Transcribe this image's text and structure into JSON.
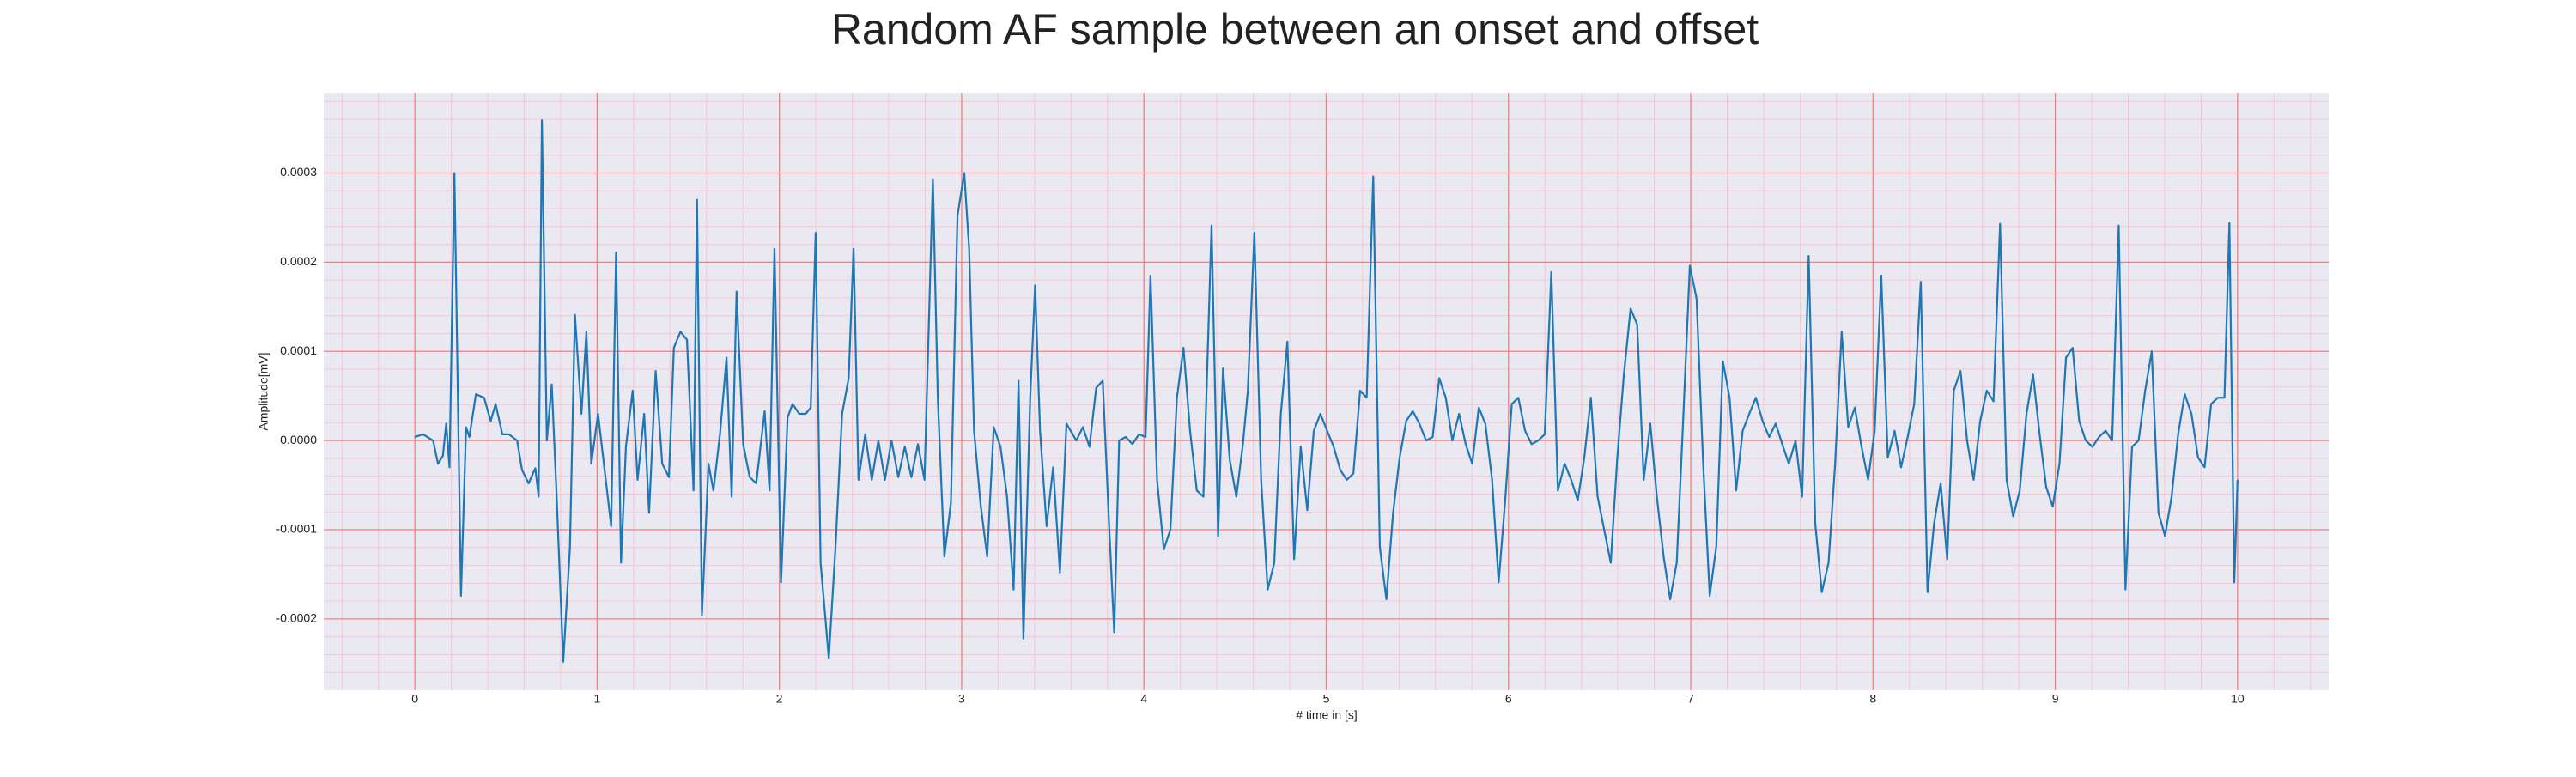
{
  "chart_data": {
    "type": "line",
    "title": "Random AF sample between an onset and offset",
    "xlabel": "# time in [s]",
    "ylabel": "Amplitude[mV]",
    "xlim": [
      -0.5,
      10.5
    ],
    "ylim": [
      -0.00028,
      0.00039
    ],
    "xticks": [
      0,
      1,
      2,
      3,
      4,
      5,
      6,
      7,
      8,
      9,
      10
    ],
    "yticks": [
      -0.0002,
      -0.0001,
      {
        "value": 0,
        "label": "0.0000"
      },
      0.0001,
      0.0002,
      0.0003
    ],
    "xminorticks": [
      -0.4,
      -0.2,
      0.2,
      0.4,
      0.6,
      0.8,
      1.2,
      1.4,
      1.6,
      1.8,
      2.2,
      2.4,
      2.6,
      2.8,
      3.2,
      3.4,
      3.6,
      3.8,
      4.2,
      4.4,
      4.6,
      4.8,
      5.2,
      5.4,
      5.6,
      5.8,
      6.2,
      6.4,
      6.6,
      6.8,
      7.2,
      7.4,
      7.6,
      7.8,
      8.2,
      8.4,
      8.6,
      8.8,
      9.2,
      9.4,
      9.6,
      9.8,
      10.2,
      10.4
    ],
    "yminorticks": [
      -0.00026,
      -0.00024,
      -0.00022,
      -0.00018,
      -0.00016,
      -0.00014,
      -0.00012,
      -8e-05,
      -6e-05,
      -4e-05,
      -2e-05,
      2e-05,
      4e-05,
      6e-05,
      8e-05,
      0.00012,
      0.00014,
      0.00016,
      0.00018,
      0.00022,
      0.00024,
      0.00026,
      0.00028,
      0.00032,
      0.00034,
      0.00036,
      0.00038
    ],
    "grid": true,
    "minor_grid": true,
    "grid_color": "#f08080",
    "minor_grid_color": "#f7c6cc",
    "background": "#eae9f2",
    "series": [
      {
        "color": "#1f77b4",
        "x": [
          0,
          0.045,
          0.1,
          0.127,
          0.154,
          0.172,
          0.19,
          0.217,
          0.253,
          0.281,
          0.299,
          0.335,
          0.38,
          0.416,
          0.443,
          0.48,
          0.516,
          0.561,
          0.588,
          0.624,
          0.661,
          0.679,
          0.697,
          0.724,
          0.751,
          0.778,
          0.814,
          0.851,
          0.878,
          0.914,
          0.941,
          0.968,
          1.005,
          1.041,
          1.077,
          1.104,
          1.131,
          1.158,
          1.195,
          1.222,
          1.258,
          1.285,
          1.321,
          1.357,
          1.394,
          1.421,
          1.457,
          1.493,
          1.529,
          1.548,
          1.575,
          1.611,
          1.638,
          1.674,
          1.71,
          1.738,
          1.765,
          1.801,
          1.837,
          1.873,
          1.919,
          1.946,
          1.973,
          2.009,
          2.045,
          2.072,
          2.109,
          2.145,
          2.172,
          2.199,
          2.226,
          2.271,
          2.308,
          2.344,
          2.38,
          2.407,
          2.434,
          2.471,
          2.507,
          2.543,
          2.579,
          2.615,
          2.652,
          2.688,
          2.724,
          2.76,
          2.796,
          2.842,
          2.869,
          2.905,
          2.941,
          2.977,
          3.014,
          3.041,
          3.068,
          3.104,
          3.14,
          3.176,
          3.213,
          3.249,
          3.285,
          3.312,
          3.339,
          3.376,
          3.403,
          3.43,
          3.466,
          3.502,
          3.539,
          3.575,
          3.629,
          3.665,
          3.701,
          3.738,
          3.774,
          3.81,
          3.837,
          3.864,
          3.9,
          3.937,
          3.973,
          4.009,
          4.036,
          4.072,
          4.109,
          4.145,
          4.181,
          4.217,
          4.253,
          4.29,
          4.326,
          4.371,
          4.407,
          4.434,
          4.471,
          4.507,
          4.543,
          4.57,
          4.606,
          4.643,
          4.679,
          4.715,
          4.751,
          4.787,
          4.824,
          4.86,
          4.896,
          4.932,
          4.968,
          5.005,
          5.041,
          5.077,
          5.113,
          5.149,
          5.186,
          5.222,
          5.258,
          5.294,
          5.33,
          5.367,
          5.403,
          5.439,
          5.475,
          5.511,
          5.548,
          5.584,
          5.62,
          5.656,
          5.692,
          5.729,
          5.765,
          5.801,
          5.837,
          5.873,
          5.91,
          5.946,
          5.982,
          6.018,
          6.054,
          6.091,
          6.127,
          6.163,
          6.199,
          6.235,
          6.271,
          6.308,
          6.344,
          6.38,
          6.416,
          6.452,
          6.489,
          6.525,
          6.561,
          6.597,
          6.633,
          6.67,
          6.706,
          6.742,
          6.778,
          6.814,
          6.851,
          6.887,
          6.923,
          6.959,
          6.995,
          7.032,
          7.068,
          7.104,
          7.14,
          7.176,
          7.213,
          7.249,
          7.285,
          7.321,
          7.357,
          7.394,
          7.43,
          7.466,
          7.502,
          7.538,
          7.575,
          7.611,
          7.647,
          7.683,
          7.719,
          7.756,
          7.792,
          7.828,
          7.864,
          7.9,
          7.937,
          7.973,
          8.009,
          8.045,
          8.081,
          8.118,
          8.154,
          8.19,
          8.226,
          8.262,
          8.299,
          8.335,
          8.371,
          8.407,
          8.443,
          8.48,
          8.516,
          8.552,
          8.588,
          8.624,
          8.661,
          8.697,
          8.733,
          8.769,
          8.805,
          8.842,
          8.878,
          8.914,
          8.95,
          8.986,
          9.023,
          9.059,
          9.095,
          9.131,
          9.167,
          9.204,
          9.24,
          9.276,
          9.312,
          9.348,
          9.385,
          9.421,
          9.457,
          9.493,
          9.529,
          9.566,
          9.602,
          9.638,
          9.674,
          9.71,
          9.747,
          9.783,
          9.819,
          9.855,
          9.891,
          9.928,
          9.955,
          9.982,
          10.0
        ],
        "values": [
          4e-06,
          7e-06,
          0,
          -2.6e-05,
          -1.7e-05,
          1.9e-05,
          -3e-05,
          0.0003,
          -0.000174,
          1.5e-05,
          4e-06,
          5.2e-05,
          4.8e-05,
          2.2e-05,
          4.1e-05,
          7e-06,
          7e-06,
          0,
          -3.3e-05,
          -4.8e-05,
          -3.1e-05,
          -6.3e-05,
          0.000359,
          0,
          6.3e-05,
          -6.3e-05,
          -0.000248,
          -0.000119,
          0.000141,
          3e-05,
          0.000122,
          -2.6e-05,
          3e-05,
          -3.3e-05,
          -9.6e-05,
          0.000211,
          -0.000137,
          -7e-06,
          5.6e-05,
          -4.4e-05,
          3e-05,
          -8.1e-05,
          7.8e-05,
          -2.6e-05,
          -4.1e-05,
          0.000104,
          0.000122,
          0.000113,
          -5.6e-05,
          0.00027,
          -0.000196,
          -2.6e-05,
          -5.6e-05,
          7e-06,
          9.3e-05,
          -6.3e-05,
          0.000167,
          -4e-06,
          -4.1e-05,
          -4.8e-05,
          3.3e-05,
          -5.6e-05,
          0.000215,
          -0.000159,
          2.6e-05,
          4.1e-05,
          3e-05,
          3e-05,
          3.7e-05,
          0.000233,
          -0.000137,
          -0.000244,
          -0.000119,
          3e-05,
          7e-05,
          0.000215,
          -4.4e-05,
          7e-06,
          -4.4e-05,
          0,
          -4.4e-05,
          0,
          -4.1e-05,
          -7e-06,
          -4.1e-05,
          -4e-06,
          -4.4e-05,
          0.000293,
          4.8e-05,
          -0.00013,
          -7e-05,
          0.000252,
          0.0003,
          0.000215,
          1.1e-05,
          -7.2e-05,
          -0.00013,
          1.5e-05,
          -7e-06,
          -6.3e-05,
          -0.000167,
          6.7e-05,
          -0.000222,
          4.8e-05,
          0.000174,
          1.1e-05,
          -9.6e-05,
          -3e-05,
          -0.000148,
          1.9e-05,
          0,
          1.5e-05,
          -7e-06,
          5.9e-05,
          6.7e-05,
          -0.0001,
          -0.000215,
          0,
          4e-06,
          -4e-06,
          7e-06,
          4e-06,
          0.000185,
          -4.4e-05,
          -0.000122,
          -0.0001,
          4.8e-05,
          0.000104,
          1.1e-05,
          -5.6e-05,
          -6.3e-05,
          0.000241,
          -0.000107,
          8.1e-05,
          -2.2e-05,
          -6.3e-05,
          -4e-06,
          5.6e-05,
          0.000233,
          -4.4e-05,
          -0.000167,
          -0.000137,
          3e-05,
          0.000111,
          -0.000133,
          -7e-06,
          -7.8e-05,
          1.1e-05,
          3e-05,
          1.1e-05,
          -7e-06,
          -3.3e-05,
          -4.4e-05,
          -3.7e-05,
          5.6e-05,
          4.8e-05,
          0.000296,
          -0.000119,
          -0.000178,
          -8.1e-05,
          -1.9e-05,
          2.2e-05,
          3.3e-05,
          1.9e-05,
          0,
          4e-06,
          7e-05,
          4.8e-05,
          0,
          3e-05,
          -4e-06,
          -2.6e-05,
          3.7e-05,
          1.9e-05,
          -4.4e-05,
          -0.000159,
          -6.7e-05,
          4.1e-05,
          4.8e-05,
          1.1e-05,
          -4e-06,
          0,
          7e-06,
          0.000189,
          -5.6e-05,
          -2.6e-05,
          -4.4e-05,
          -6.7e-05,
          -1.9e-05,
          4.8e-05,
          -6.3e-05,
          -0.0001,
          -0.000137,
          -1.9e-05,
          7.4e-05,
          0.000148,
          0.00013,
          -4.4e-05,
          1.9e-05,
          -6.3e-05,
          -0.00013,
          -0.000178,
          -0.000137,
          2.6e-05,
          0.000196,
          0.000159,
          -2.6e-05,
          -0.000174,
          -0.000119,
          8.9e-05,
          4.8e-05,
          -5.6e-05,
          1.1e-05,
          3e-05,
          4.8e-05,
          2.2e-05,
          4e-06,
          1.9e-05,
          -4e-06,
          -2.6e-05,
          0,
          -6.3e-05,
          0.000207,
          -9.3e-05,
          -0.00017,
          -0.000137,
          -2.6e-05,
          0.000122,
          1.5e-05,
          3.7e-05,
          -7e-06,
          -4.4e-05,
          1.1e-05,
          0.000185,
          -1.9e-05,
          1.1e-05,
          -3e-05,
          4e-06,
          4.1e-05,
          0.000178,
          -0.00017,
          -9.3e-05,
          -4.8e-05,
          -0.000133,
          5.6e-05,
          7.8e-05,
          0,
          -4.4e-05,
          2.2e-05,
          5.6e-05,
          4.4e-05,
          0.000243,
          -4.4e-05,
          -8.5e-05,
          -5.6e-05,
          3e-05,
          7.4e-05,
          7e-06,
          -5.2e-05,
          -7.4e-05,
          -2.6e-05,
          9.3e-05,
          0.000104,
          2.2e-05,
          0,
          -7e-06,
          4e-06,
          1.1e-05,
          0,
          0.000241,
          -0.000167,
          -7e-06,
          0,
          5.6e-05,
          0.0001,
          -8.1e-05,
          -0.000107,
          -6.3e-05,
          7e-06,
          5.2e-05,
          3e-05,
          -1.9e-05,
          -3e-05,
          4.1e-05,
          4.8e-05,
          4.8e-05,
          0.000244,
          -0.000159,
          -4.4e-05
        ]
      }
    ]
  }
}
